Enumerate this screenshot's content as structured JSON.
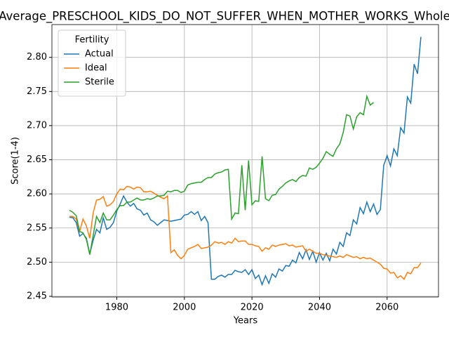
{
  "chart_data": {
    "type": "line",
    "title": "Average_PRESCHOOL_KIDS_DO_NOT_SUFFER_WHEN_MOTHER_WORKS_Whole",
    "xlabel": "Years",
    "ylabel": "Score(1-4)",
    "legend_title": "Fertility",
    "legend": "upper left",
    "grid": true,
    "x": [
      1966,
      1967,
      1968,
      1969,
      1970,
      1971,
      1972,
      1973,
      1974,
      1975,
      1976,
      1977,
      1978,
      1979,
      1980,
      1981,
      1982,
      1983,
      1984,
      1985,
      1986,
      1987,
      1988,
      1989,
      1990,
      1991,
      1992,
      1993,
      1994,
      1995,
      1996,
      1997,
      1998,
      1999,
      2000,
      2001,
      2002,
      2003,
      2004,
      2005,
      2006,
      2007,
      2008,
      2009,
      2010,
      2011,
      2012,
      2013,
      2014,
      2015,
      2016,
      2017,
      2018,
      2019,
      2020,
      2021,
      2022,
      2023,
      2024,
      2025,
      2026,
      2027,
      2028,
      2029,
      2030,
      2031,
      2032,
      2033,
      2034,
      2035,
      2036,
      2037,
      2038,
      2039,
      2040,
      2041,
      2042,
      2043,
      2044,
      2045,
      2046,
      2047,
      2048,
      2049,
      2050,
      2051,
      2052,
      2053,
      2054,
      2055,
      2056,
      2057,
      2058,
      2059,
      2060,
      2061,
      2062,
      2063,
      2064,
      2065,
      2066,
      2067,
      2068,
      2069,
      2070
    ],
    "series": [
      {
        "name": "Actual",
        "color": "#1f77b4",
        "values": [
          2.566,
          2.565,
          2.558,
          2.538,
          2.542,
          2.535,
          2.512,
          2.532,
          2.548,
          2.543,
          2.565,
          2.548,
          2.551,
          2.558,
          2.575,
          2.585,
          2.597,
          2.588,
          2.582,
          2.586,
          2.578,
          2.576,
          2.569,
          2.572,
          2.562,
          2.559,
          2.554,
          2.558,
          2.562,
          2.561,
          2.56,
          2.561,
          2.562,
          2.563,
          2.569,
          2.57,
          2.574,
          2.57,
          2.574,
          2.561,
          2.567,
          2.558,
          2.475,
          2.475,
          2.479,
          2.481,
          2.478,
          2.482,
          2.482,
          2.488,
          2.486,
          2.485,
          2.489,
          2.482,
          2.489,
          2.476,
          2.481,
          2.467,
          2.48,
          2.469,
          2.483,
          2.478,
          2.49,
          2.487,
          2.495,
          2.494,
          2.503,
          2.499,
          2.514,
          2.505,
          2.518,
          2.504,
          2.516,
          2.5,
          2.514,
          2.503,
          2.513,
          2.502,
          2.519,
          2.512,
          2.529,
          2.523,
          2.543,
          2.539,
          2.562,
          2.556,
          2.58,
          2.571,
          2.588,
          2.574,
          2.585,
          2.57,
          2.577,
          2.642,
          2.656,
          2.641,
          2.666,
          2.656,
          2.697,
          2.689,
          2.742,
          2.733,
          2.79,
          2.776,
          2.83
        ]
      },
      {
        "name": "Ideal",
        "color": "#ff7f0e",
        "values": [
          2.567,
          2.567,
          2.563,
          2.545,
          2.563,
          2.553,
          2.535,
          2.572,
          2.591,
          2.592,
          2.596,
          2.582,
          2.584,
          2.589,
          2.6,
          2.607,
          2.606,
          2.611,
          2.61,
          2.607,
          2.61,
          2.609,
          2.603,
          2.603,
          2.604,
          2.601,
          2.598,
          2.595,
          2.593,
          2.597,
          2.514,
          2.518,
          2.51,
          2.505,
          2.51,
          2.519,
          2.521,
          2.523,
          2.526,
          2.52,
          2.521,
          2.522,
          2.525,
          2.53,
          2.528,
          2.529,
          2.526,
          2.53,
          2.528,
          2.535,
          2.53,
          2.531,
          2.531,
          2.526,
          2.526,
          2.524,
          2.523,
          2.516,
          2.521,
          2.519,
          2.525,
          2.523,
          2.525,
          2.526,
          2.527,
          2.524,
          2.525,
          2.522,
          2.523,
          2.524,
          2.516,
          2.519,
          2.516,
          2.513,
          2.513,
          2.511,
          2.51,
          2.509,
          2.508,
          2.507,
          2.509,
          2.507,
          2.511,
          2.509,
          2.507,
          2.508,
          2.505,
          2.507,
          2.505,
          2.506,
          2.503,
          2.5,
          2.497,
          2.491,
          2.49,
          2.484,
          2.485,
          2.477,
          2.48,
          2.475,
          2.485,
          2.483,
          2.492,
          2.492,
          2.499
        ]
      },
      {
        "name": "Sterile",
        "color": "#2ca02c",
        "values": [
          2.576,
          2.573,
          2.568,
          2.545,
          2.543,
          2.533,
          2.511,
          2.539,
          2.567,
          2.558,
          2.572,
          2.562,
          2.562,
          2.569,
          2.577,
          2.583,
          2.583,
          2.588,
          2.588,
          2.591,
          2.594,
          2.591,
          2.591,
          2.593,
          2.592,
          2.594,
          2.597,
          2.597,
          2.598,
          2.604,
          2.603,
          2.605,
          2.605,
          2.602,
          2.604,
          2.613,
          2.615,
          2.616,
          2.617,
          2.617,
          2.621,
          2.624,
          2.624,
          2.629,
          2.631,
          2.632,
          2.635,
          2.636,
          2.563,
          2.572,
          2.571,
          2.642,
          2.576,
          2.649,
          2.584,
          2.59,
          2.589,
          2.655,
          2.593,
          2.59,
          2.598,
          2.599,
          2.607,
          2.611,
          2.616,
          2.619,
          2.621,
          2.618,
          2.624,
          2.627,
          2.626,
          2.638,
          2.636,
          2.639,
          2.645,
          2.652,
          2.662,
          2.658,
          2.655,
          2.666,
          2.673,
          2.69,
          2.716,
          2.714,
          2.695,
          2.713,
          2.719,
          2.716,
          2.743,
          2.73,
          2.734,
          null,
          null,
          null,
          null,
          null,
          null,
          null,
          null,
          null,
          null,
          null,
          null,
          null,
          null
        ]
      }
    ],
    "xlim": [
      1960.8,
      2075.2
    ],
    "ylim": [
      2.449,
      2.848
    ],
    "xticks": [
      1980,
      2000,
      2020,
      2040,
      2060
    ],
    "yticks": [
      2.45,
      {
        "value": 2.5,
        "label": "2.50"
      },
      2.55,
      {
        "value": 2.6,
        "label": "2.60"
      },
      2.65,
      {
        "value": 2.7,
        "label": "2.70"
      },
      2.75,
      {
        "value": 2.8,
        "label": "2.80"
      }
    ]
  }
}
